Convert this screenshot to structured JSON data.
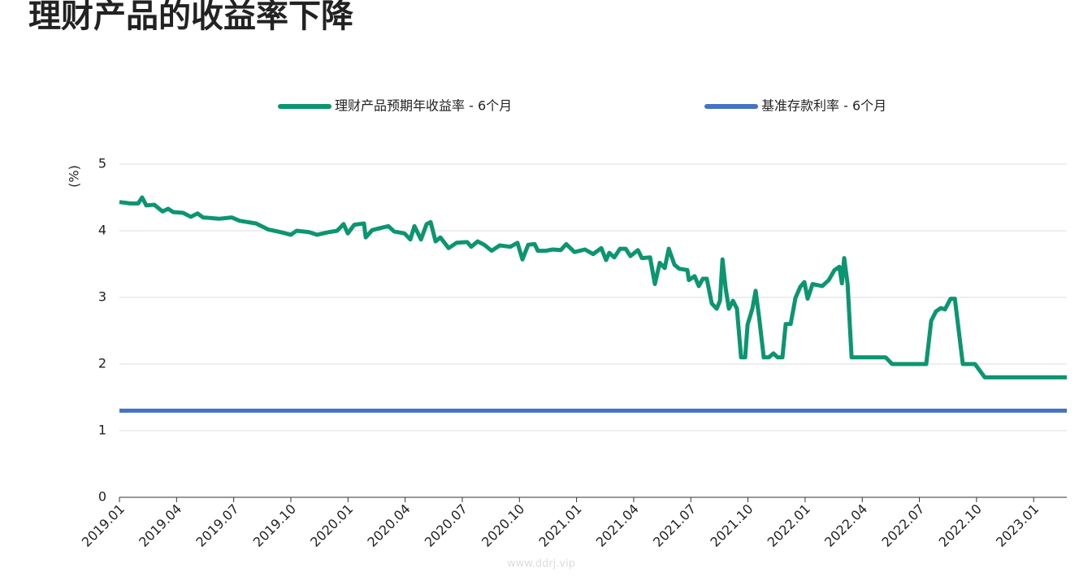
{
  "chart_data": {
    "type": "line",
    "title": "理财产品的收益率下降",
    "y_label": "(%)",
    "watermark": "www.ddrj.vip",
    "legend": "top",
    "grid": true,
    "xlim": [
      0,
      49.74
    ],
    "xticks": [
      {
        "value": 0,
        "label": "2019.01"
      },
      {
        "value": 3,
        "label": "2019.04"
      },
      {
        "value": 6,
        "label": "2019.07"
      },
      {
        "value": 9,
        "label": "2019.10"
      },
      {
        "value": 12,
        "label": "2020.01"
      },
      {
        "value": 15,
        "label": "2020.04"
      },
      {
        "value": 18,
        "label": "2020.07"
      },
      {
        "value": 21,
        "label": "2020.10"
      },
      {
        "value": 24,
        "label": "2021.01"
      },
      {
        "value": 27,
        "label": "2021.04"
      },
      {
        "value": 30,
        "label": "2021.07"
      },
      {
        "value": 33,
        "label": "2021.10"
      },
      {
        "value": 36,
        "label": "2022.01"
      },
      {
        "value": 39,
        "label": "2022.04"
      },
      {
        "value": 42,
        "label": "2022.07"
      },
      {
        "value": 45,
        "label": "2022.10"
      },
      {
        "value": 48,
        "label": "2023.01"
      }
    ],
    "ylim": [
      0,
      5
    ],
    "yticks": [
      0,
      1,
      2,
      3,
      4,
      5
    ],
    "series": [
      {
        "name": "理财产品预期年收益率 - 6个月",
        "color": "#0b9570",
        "x": [
          0,
          0.34,
          0.55,
          0.98,
          1.19,
          1.41,
          1.83,
          2.26,
          2.56,
          2.82,
          3.33,
          3.75,
          4.1,
          4.39,
          5.25,
          5.89,
          6.31,
          7.17,
          7.81,
          8.45,
          9.0,
          9.3,
          9.94,
          10.37,
          11.01,
          11.43,
          11.77,
          11.99,
          12.33,
          12.84,
          12.93,
          13.27,
          13.69,
          14.12,
          14.42,
          14.97,
          15.27,
          15.49,
          15.83,
          16.13,
          16.34,
          16.6,
          16.85,
          17.28,
          17.7,
          18.26,
          18.47,
          18.81,
          19.15,
          19.54,
          19.97,
          20.52,
          20.9,
          21.16,
          21.46,
          21.8,
          21.97,
          22.4,
          22.74,
          23.17,
          23.46,
          23.89,
          24.44,
          24.87,
          25.3,
          25.55,
          25.72,
          25.98,
          26.28,
          26.58,
          26.83,
          27.22,
          27.43,
          27.86,
          28.11,
          28.37,
          28.63,
          28.84,
          29.14,
          29.39,
          29.82,
          29.9,
          30.2,
          30.42,
          30.63,
          30.84,
          31.1,
          31.36,
          31.53,
          31.66,
          31.83,
          32.0,
          32.21,
          32.42,
          32.64,
          32.85,
          32.98,
          33.23,
          33.4,
          33.58,
          33.83,
          34.09,
          34.34,
          34.56,
          34.81,
          34.98,
          35.24,
          35.49,
          35.75,
          35.96,
          36.13,
          36.39,
          36.9,
          37.24,
          37.54,
          37.8,
          37.93,
          38.05,
          38.23,
          38.44,
          40.23,
          40.57,
          42.36,
          42.62,
          42.87,
          43.13,
          43.34,
          43.64,
          43.86,
          44.28,
          44.92,
          45.43,
          49.74
        ],
        "values": [
          4.43,
          4.42,
          4.41,
          4.41,
          4.5,
          4.38,
          4.39,
          4.29,
          4.33,
          4.28,
          4.27,
          4.21,
          4.26,
          4.2,
          4.18,
          4.2,
          4.15,
          4.11,
          4.02,
          3.98,
          3.94,
          4.0,
          3.98,
          3.94,
          3.98,
          4.0,
          4.1,
          3.96,
          4.09,
          4.11,
          3.9,
          4.01,
          4.04,
          4.07,
          3.99,
          3.96,
          3.87,
          4.07,
          3.87,
          4.1,
          4.13,
          3.84,
          3.9,
          3.74,
          3.82,
          3.83,
          3.76,
          3.84,
          3.79,
          3.7,
          3.78,
          3.76,
          3.82,
          3.57,
          3.79,
          3.8,
          3.7,
          3.7,
          3.72,
          3.71,
          3.8,
          3.68,
          3.72,
          3.65,
          3.74,
          3.56,
          3.67,
          3.6,
          3.73,
          3.73,
          3.62,
          3.71,
          3.59,
          3.6,
          3.2,
          3.52,
          3.44,
          3.73,
          3.49,
          3.43,
          3.41,
          3.26,
          3.32,
          3.17,
          3.28,
          3.28,
          2.91,
          2.83,
          2.95,
          3.57,
          3.13,
          2.83,
          2.95,
          2.83,
          2.1,
          2.1,
          2.59,
          2.83,
          3.1,
          2.71,
          2.1,
          2.1,
          2.16,
          2.1,
          2.1,
          2.6,
          2.6,
          2.99,
          3.16,
          3.23,
          2.98,
          3.2,
          3.17,
          3.26,
          3.41,
          3.46,
          3.21,
          3.59,
          3.2,
          2.1,
          2.1,
          2.0,
          2.0,
          2.65,
          2.79,
          2.84,
          2.82,
          2.98,
          2.98,
          2.0,
          2.0,
          1.8,
          1.8
        ]
      },
      {
        "name": "基准存款利率 - 6个月",
        "color": "#4472c4",
        "x": [
          0,
          49.74
        ],
        "values": [
          1.3,
          1.3
        ]
      }
    ]
  }
}
